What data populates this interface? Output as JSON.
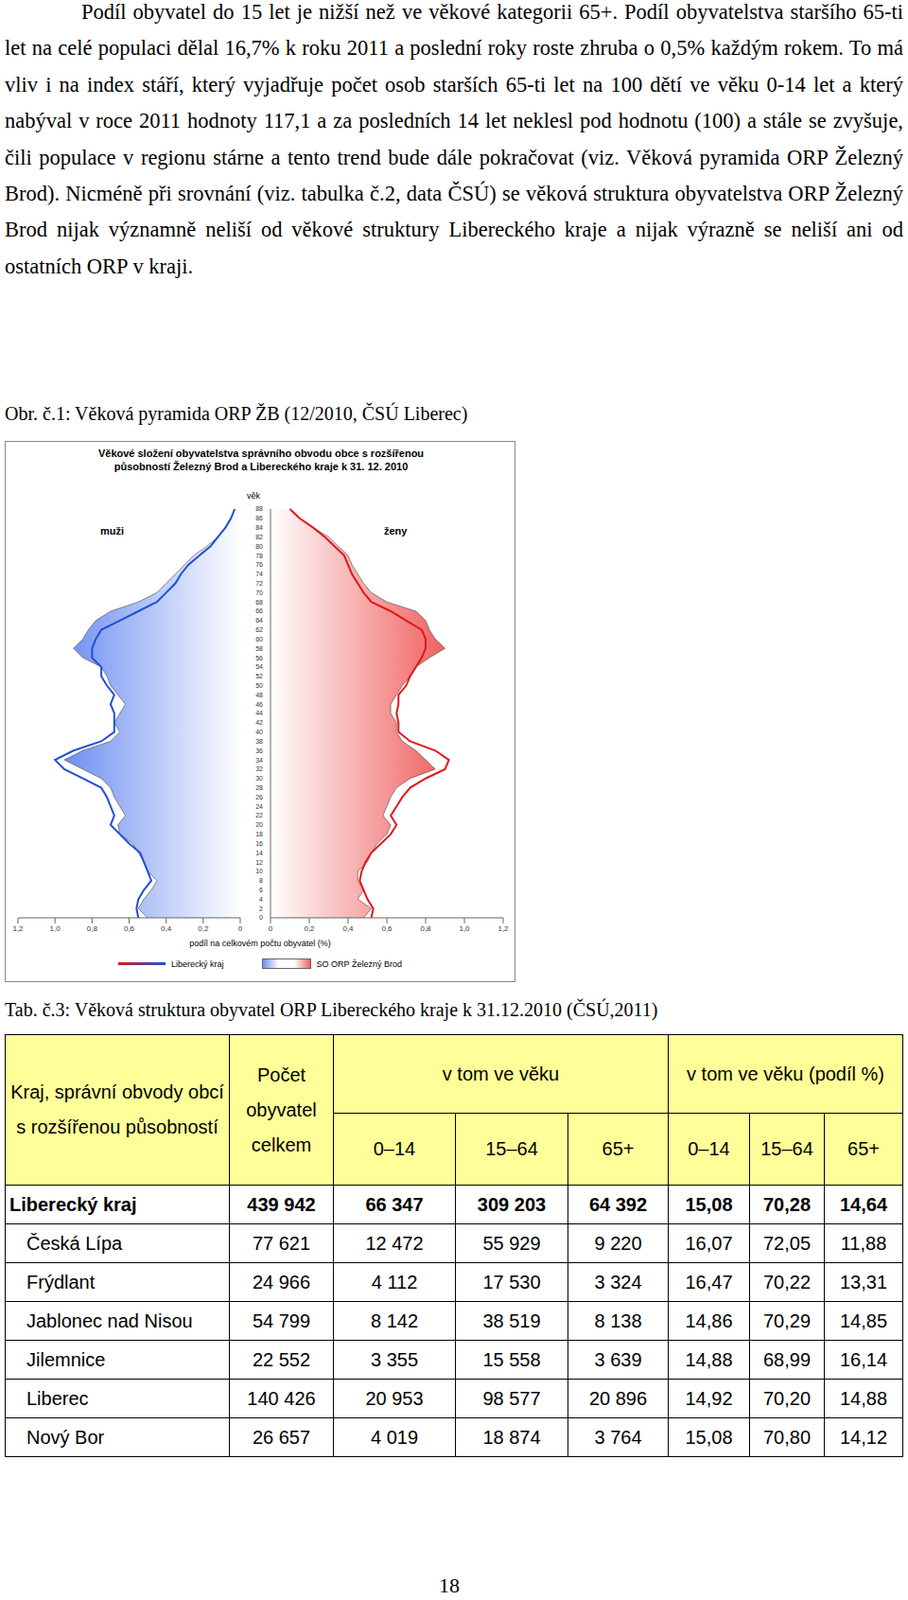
{
  "paragraph": "Podíl obyvatel do 15 let je nižší než ve věkové kategorii 65+. Podíl obyvatelstva staršího 65-ti let na celé populaci dělal 16,7% k roku 2011 a poslední roky roste zhruba o 0,5% každým rokem. To má vliv i na index stáří, který vyjadřuje počet osob starších 65-ti let na 100 dětí ve věku 0-14 let a který nabýval v roce 2011 hodnoty 117,1 a za posledních 14 let neklesl pod hodnotu (100) a stále se zvyšuje, čili populace v regionu stárne a tento trend bude dále pokračovat (viz. Věková pyramida ORP Železný Brod). Nicméně při srovnání (viz. tabulka č.2, data ČSÚ) se věková struktura obyvatelstva ORP Železný Brod nijak významně neliší od věkové struktury Libereckého kraje a nijak výrazně se neliší ani od ostatních ORP v kraji.",
  "figure_caption": "Obr. č.1: Věková pyramida ORP ŽB (12/2010, ČSÚ Liberec)",
  "chart_data": {
    "type": "population_pyramid",
    "title": "Věkové složení obyvatelstva správního obvodu obce s rozšířenou působností Železný Brod a Libereckého kraje k 31. 12. 2010",
    "y_label": "věk",
    "x_label": "podíl na celkovém počtu obyvatel (%)",
    "categories": [
      0,
      2,
      4,
      6,
      8,
      10,
      12,
      14,
      16,
      18,
      20,
      22,
      24,
      26,
      28,
      30,
      32,
      34,
      36,
      38,
      40,
      42,
      44,
      46,
      48,
      50,
      52,
      54,
      56,
      58,
      60,
      62,
      64,
      66,
      68,
      70,
      72,
      74,
      76,
      78,
      80,
      82,
      84,
      86,
      88
    ],
    "xlim": [
      0,
      1.2
    ],
    "xticks": [
      0,
      {
        "value": 0.2,
        "label": "0,2"
      },
      {
        "value": 0.4,
        "label": "0,4"
      },
      {
        "value": 0.6,
        "label": "0,6"
      },
      {
        "value": 0.8,
        "label": "0,8"
      },
      {
        "value": 1.0,
        "label": "1,0"
      },
      {
        "value": 1.2,
        "label": "1,2"
      }
    ],
    "groups": [
      {
        "name": "muži",
        "series": [
          {
            "name": "Liberecký kraj",
            "type": "line",
            "color": "#1f4fd8",
            "values": [
              0.55,
              0.56,
              0.55,
              0.52,
              0.48,
              0.5,
              0.52,
              0.54,
              0.6,
              0.65,
              0.7,
              0.68,
              0.7,
              0.72,
              0.75,
              0.85,
              0.95,
              1.0,
              0.9,
              0.75,
              0.68,
              0.68,
              0.68,
              0.7,
              0.68,
              0.72,
              0.75,
              0.75,
              0.8,
              0.8,
              0.78,
              0.75,
              0.65,
              0.55,
              0.45,
              0.4,
              0.35,
              0.32,
              0.28,
              0.22,
              0.16,
              0.12,
              0.08,
              0.05,
              0.03
            ]
          },
          {
            "name": "SO ORP Železný Brod",
            "type": "area",
            "color": "#6f8ff0",
            "values": [
              0.5,
              0.55,
              0.52,
              0.48,
              0.45,
              0.5,
              0.52,
              0.55,
              0.58,
              0.65,
              0.66,
              0.62,
              0.65,
              0.68,
              0.7,
              0.75,
              0.85,
              0.95,
              0.85,
              0.7,
              0.65,
              0.68,
              0.65,
              0.62,
              0.66,
              0.7,
              0.72,
              0.75,
              0.85,
              0.9,
              0.85,
              0.82,
              0.78,
              0.7,
              0.55,
              0.45,
              0.4,
              0.35,
              0.3,
              0.25,
              0.18,
              0.12,
              0.08,
              0.05,
              0.03
            ]
          }
        ]
      },
      {
        "name": "ženy",
        "series": [
          {
            "name": "Liberecký kraj",
            "type": "line",
            "color": "#e01818",
            "values": [
              0.52,
              0.53,
              0.5,
              0.48,
              0.46,
              0.47,
              0.49,
              0.52,
              0.57,
              0.62,
              0.65,
              0.62,
              0.65,
              0.68,
              0.72,
              0.8,
              0.9,
              0.92,
              0.85,
              0.72,
              0.66,
              0.66,
              0.65,
              0.66,
              0.66,
              0.7,
              0.72,
              0.75,
              0.78,
              0.8,
              0.8,
              0.78,
              0.7,
              0.62,
              0.52,
              0.48,
              0.45,
              0.42,
              0.4,
              0.38,
              0.33,
              0.28,
              0.22,
              0.15,
              0.1
            ]
          },
          {
            "name": "SO ORP Železný Brod",
            "type": "area",
            "color": "#f06060",
            "values": [
              0.48,
              0.52,
              0.45,
              0.48,
              0.45,
              0.45,
              0.5,
              0.52,
              0.55,
              0.6,
              0.62,
              0.58,
              0.6,
              0.62,
              0.65,
              0.72,
              0.85,
              0.8,
              0.75,
              0.68,
              0.65,
              0.65,
              0.62,
              0.62,
              0.65,
              0.68,
              0.72,
              0.75,
              0.82,
              0.9,
              0.85,
              0.82,
              0.8,
              0.75,
              0.6,
              0.52,
              0.48,
              0.45,
              0.42,
              0.4,
              0.35,
              0.3,
              0.22,
              0.15,
              0.1
            ]
          }
        ]
      }
    ]
  },
  "table_caption": "Tab. č.3: Věková struktura obyvatel ORP Libereckého kraje k 31.12.2010 (ČSÚ,2011)",
  "table": {
    "header": {
      "name": "Kraj, správní obvody obcí s rozšířenou působností",
      "total": "Počet obyvatel celkem",
      "ages": "v tom ve věku",
      "shares": "v tom ve věku (podíl %)",
      "subcolumns": [
        "0–14",
        "15–64",
        "65+"
      ]
    },
    "rows": [
      [
        "Liberecký kraj",
        "439 942",
        "66 347",
        "309 203",
        "64 392",
        "15,08",
        "70,28",
        "14,64"
      ],
      [
        "Česká Lípa",
        "77 621",
        "12 472",
        "55 929",
        "9 220",
        "16,07",
        "72,05",
        "11,88"
      ],
      [
        "Frýdlant",
        "24 966",
        "4 112",
        "17 530",
        "3 324",
        "16,47",
        "70,22",
        "13,31"
      ],
      [
        "Jablonec nad Nisou",
        "54 799",
        "8 142",
        "38 519",
        "8 138",
        "14,86",
        "70,29",
        "14,85"
      ],
      [
        "Jilemnice",
        "22 552",
        "3 355",
        "15 558",
        "3 639",
        "14,88",
        "68,99",
        "16,14"
      ],
      [
        "Liberec",
        "140 426",
        "20 953",
        "98 577",
        "20 896",
        "14,92",
        "70,20",
        "14,88"
      ],
      [
        "Nový Bor",
        "26 657",
        "4 019",
        "18 874",
        "3 764",
        "15,08",
        "70,80",
        "14,12"
      ]
    ]
  },
  "page_number": "18"
}
